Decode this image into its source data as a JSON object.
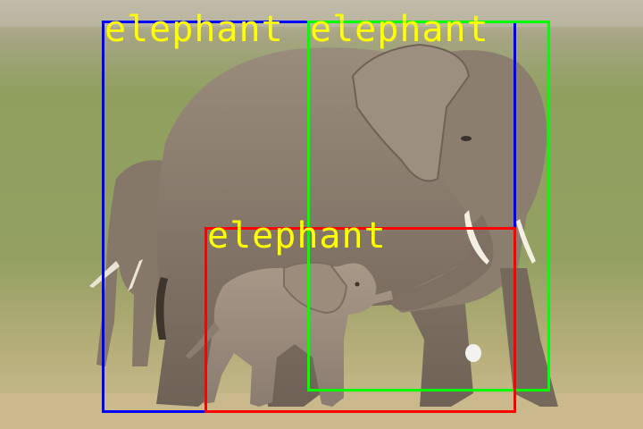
{
  "colors": {
    "label_text": "#ffff00",
    "box_blue": "#0000ff",
    "box_green": "#00ff00",
    "box_red": "#ff0000",
    "grass": "#8a9a5a",
    "ground": "#c8b88c",
    "elephant_skin": "#8a7b6a"
  },
  "detections": [
    {
      "label": "elephant",
      "color": "#0000ff"
    },
    {
      "label": "elephant",
      "color": "#00ff00"
    },
    {
      "label": "elephant",
      "color": "#ff0000"
    }
  ]
}
